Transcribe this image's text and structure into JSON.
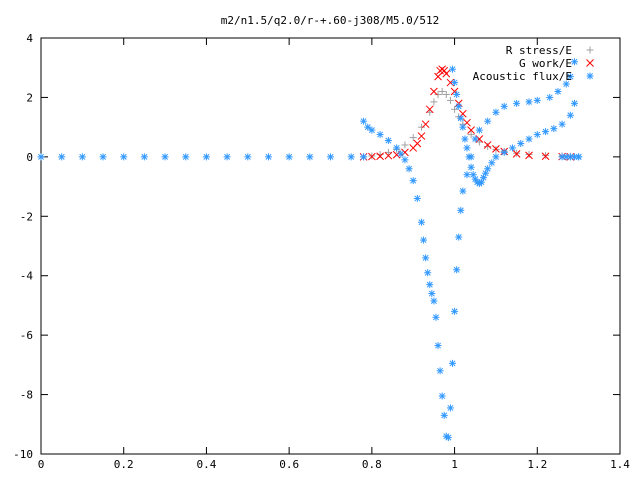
{
  "chart_data": {
    "type": "scatter",
    "title": "m2/n1.5/q2.0/r-+.60-j308/M5.0/512",
    "xlim": [
      0,
      1.4
    ],
    "ylim": [
      -10,
      4
    ],
    "xticks": [
      0,
      0.2,
      0.4,
      0.6,
      0.8,
      1,
      1.2,
      1.4
    ],
    "yticks": [
      4,
      2,
      0,
      -2,
      -4,
      -6,
      -8,
      -10
    ],
    "xtick_labels": [
      "0",
      "0.2",
      "0.4",
      "0.6",
      "0.8",
      "1",
      "1.2",
      "1.4"
    ],
    "ytick_labels": [
      "4",
      "2",
      "0",
      "-2",
      "-4",
      "-6",
      "-8",
      "-10"
    ],
    "grid": false,
    "legend_position": "top-right",
    "series": [
      {
        "name": "R stress/E",
        "marker": "plus",
        "color": "#a0a0a0",
        "points": [
          [
            0.78,
            0.0
          ],
          [
            0.8,
            0.03
          ],
          [
            0.82,
            0.08
          ],
          [
            0.84,
            0.15
          ],
          [
            0.86,
            0.25
          ],
          [
            0.88,
            0.4
          ],
          [
            0.9,
            0.65
          ],
          [
            0.92,
            1.0
          ],
          [
            0.94,
            1.5
          ],
          [
            0.95,
            1.85
          ],
          [
            0.96,
            2.1
          ],
          [
            0.97,
            2.2
          ],
          [
            0.98,
            2.1
          ],
          [
            0.99,
            1.9
          ],
          [
            1.0,
            1.6
          ],
          [
            1.01,
            1.35
          ],
          [
            1.02,
            1.1
          ],
          [
            1.04,
            0.75
          ],
          [
            1.06,
            0.5
          ],
          [
            1.08,
            0.35
          ],
          [
            1.1,
            0.25
          ],
          [
            1.12,
            0.18
          ],
          [
            1.15,
            0.12
          ],
          [
            1.18,
            0.08
          ],
          [
            1.22,
            0.05
          ],
          [
            1.26,
            0.03
          ],
          [
            1.28,
            0.02
          ]
        ]
      },
      {
        "name": "G work/E",
        "marker": "cross",
        "color": "#ff0000",
        "points": [
          [
            0.78,
            0.0
          ],
          [
            0.8,
            0.01
          ],
          [
            0.82,
            0.02
          ],
          [
            0.84,
            0.04
          ],
          [
            0.86,
            0.07
          ],
          [
            0.88,
            0.15
          ],
          [
            0.9,
            0.3
          ],
          [
            0.91,
            0.45
          ],
          [
            0.92,
            0.7
          ],
          [
            0.93,
            1.1
          ],
          [
            0.94,
            1.6
          ],
          [
            0.95,
            2.2
          ],
          [
            0.96,
            2.7
          ],
          [
            0.965,
            2.9
          ],
          [
            0.97,
            2.95
          ],
          [
            0.975,
            2.9
          ],
          [
            0.98,
            2.8
          ],
          [
            0.99,
            2.5
          ],
          [
            1.0,
            2.2
          ],
          [
            1.01,
            1.8
          ],
          [
            1.02,
            1.45
          ],
          [
            1.03,
            1.15
          ],
          [
            1.04,
            0.9
          ],
          [
            1.06,
            0.6
          ],
          [
            1.08,
            0.4
          ],
          [
            1.1,
            0.27
          ],
          [
            1.12,
            0.18
          ],
          [
            1.15,
            0.1
          ],
          [
            1.18,
            0.05
          ],
          [
            1.22,
            0.02
          ],
          [
            1.26,
            0.01
          ],
          [
            1.28,
            0.0
          ]
        ]
      },
      {
        "name": "Acoustic flux/E",
        "marker": "star",
        "color": "#3399ff",
        "points": [
          [
            0.0,
            0.0
          ],
          [
            0.05,
            0.0
          ],
          [
            0.1,
            0.0
          ],
          [
            0.15,
            0.0
          ],
          [
            0.2,
            0.0
          ],
          [
            0.25,
            0.0
          ],
          [
            0.3,
            0.0
          ],
          [
            0.35,
            0.0
          ],
          [
            0.4,
            0.0
          ],
          [
            0.45,
            0.0
          ],
          [
            0.5,
            0.0
          ],
          [
            0.55,
            0.0
          ],
          [
            0.6,
            0.0
          ],
          [
            0.65,
            0.0
          ],
          [
            0.7,
            0.0
          ],
          [
            0.75,
            0.0
          ],
          [
            0.78,
            0.0
          ],
          [
            0.78,
            1.2
          ],
          [
            0.79,
            1.0
          ],
          [
            0.8,
            0.9
          ],
          [
            0.82,
            0.75
          ],
          [
            0.84,
            0.55
          ],
          [
            0.86,
            0.3
          ],
          [
            0.87,
            0.1
          ],
          [
            0.88,
            -0.1
          ],
          [
            0.89,
            -0.4
          ],
          [
            0.9,
            -0.8
          ],
          [
            0.91,
            -1.4
          ],
          [
            0.92,
            -2.2
          ],
          [
            0.925,
            -2.8
          ],
          [
            0.93,
            -3.4
          ],
          [
            0.935,
            -3.9
          ],
          [
            0.94,
            -4.3
          ],
          [
            0.945,
            -4.6
          ],
          [
            0.95,
            -4.85
          ],
          [
            0.955,
            -5.4
          ],
          [
            0.96,
            -6.35
          ],
          [
            0.965,
            -7.2
          ],
          [
            0.97,
            -8.05
          ],
          [
            0.975,
            -8.7
          ],
          [
            0.98,
            -9.4
          ],
          [
            0.985,
            -9.45
          ],
          [
            0.99,
            -8.45
          ],
          [
            0.995,
            -6.95
          ],
          [
            1.0,
            -5.2
          ],
          [
            1.005,
            -3.8
          ],
          [
            1.01,
            -2.7
          ],
          [
            1.015,
            -1.8
          ],
          [
            1.02,
            -1.15
          ],
          [
            1.03,
            -0.6
          ],
          [
            1.04,
            0.0
          ],
          [
            1.05,
            0.6
          ],
          [
            1.06,
            0.9
          ],
          [
            1.08,
            1.2
          ],
          [
            1.1,
            1.5
          ],
          [
            1.12,
            1.7
          ],
          [
            1.15,
            1.8
          ],
          [
            1.18,
            1.85
          ],
          [
            1.2,
            1.9
          ],
          [
            1.23,
            2.0
          ],
          [
            1.25,
            2.2
          ],
          [
            1.27,
            2.45
          ],
          [
            1.28,
            2.7
          ],
          [
            1.29,
            3.2
          ],
          [
            1.3,
            0.0
          ],
          [
            0.995,
            2.95
          ],
          [
            1.0,
            2.5
          ],
          [
            1.005,
            2.1
          ],
          [
            1.01,
            1.7
          ],
          [
            1.015,
            1.3
          ],
          [
            1.02,
            1.0
          ],
          [
            1.025,
            0.6
          ],
          [
            1.03,
            0.3
          ],
          [
            1.035,
            0.0
          ],
          [
            1.04,
            -0.35
          ],
          [
            1.045,
            -0.6
          ],
          [
            1.05,
            -0.75
          ],
          [
            1.055,
            -0.85
          ],
          [
            1.06,
            -0.9
          ],
          [
            1.065,
            -0.85
          ],
          [
            1.07,
            -0.7
          ],
          [
            1.075,
            -0.55
          ],
          [
            1.08,
            -0.4
          ],
          [
            1.09,
            -0.2
          ],
          [
            1.1,
            0.0
          ],
          [
            1.12,
            0.15
          ],
          [
            1.14,
            0.3
          ],
          [
            1.16,
            0.45
          ],
          [
            1.18,
            0.6
          ],
          [
            1.2,
            0.75
          ],
          [
            1.22,
            0.85
          ],
          [
            1.24,
            0.95
          ],
          [
            1.26,
            1.1
          ],
          [
            1.28,
            1.4
          ],
          [
            1.29,
            1.8
          ],
          [
            1.3,
            0.0
          ],
          [
            1.29,
            0.0
          ],
          [
            1.28,
            0.0
          ],
          [
            1.27,
            0.0
          ],
          [
            1.26,
            0.0
          ]
        ]
      }
    ]
  }
}
